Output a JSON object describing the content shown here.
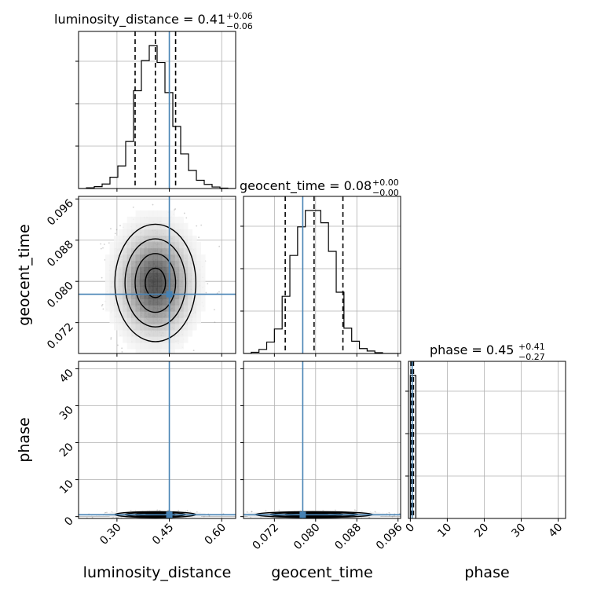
{
  "chart_data": {
    "type": "corner",
    "parameters": [
      "luminosity_distance",
      "geocent_time",
      "phase"
    ],
    "truth": {
      "luminosity_distance": 0.45,
      "geocent_time": 0.0775,
      "phase": 0.5
    },
    "truth_color": "#4682b4",
    "axes": {
      "luminosity_distance": {
        "range": [
          0.19,
          0.64
        ],
        "ticks": [
          0.3,
          0.45,
          0.6
        ],
        "tick_labels": [
          "0.30",
          "0.45",
          "0.60"
        ],
        "xlabel": "luminosity_distance"
      },
      "geocent_time": {
        "range": [
          0.066,
          0.0965
        ],
        "ticks": [
          0.072,
          0.08,
          0.088,
          0.096
        ],
        "tick_labels": [
          "0.072",
          "0.080",
          "0.088",
          "0.096"
        ],
        "xlabel": "geocent_time",
        "ylabel": "geocent_time"
      },
      "phase": {
        "range": [
          -0.5,
          42
        ],
        "ticks": [
          0,
          10,
          20,
          30,
          40
        ],
        "tick_labels": [
          "0",
          "10",
          "20",
          "30",
          "40"
        ],
        "xlabel": "phase",
        "ylabel": "phase"
      }
    },
    "marginals": [
      {
        "param": "luminosity_distance",
        "title": {
          "text": "luminosity_distance = 0.41",
          "sup": "+0.06",
          "sub": "−0.06"
        },
        "quantiles": [
          0.352,
          0.41,
          0.468
        ],
        "bin_edges": [
          0.19,
          0.2125,
          0.235,
          0.2575,
          0.28,
          0.3025,
          0.325,
          0.3475,
          0.37,
          0.3925,
          0.415,
          0.4375,
          0.46,
          0.4825,
          0.505,
          0.5275,
          0.55,
          0.5725,
          0.595,
          0.6175,
          0.64
        ],
        "counts": [
          0,
          2,
          5,
          12,
          30,
          60,
          125,
          260,
          340,
          380,
          335,
          255,
          165,
          92,
          48,
          22,
          11,
          4,
          1,
          0
        ]
      },
      {
        "param": "geocent_time",
        "title": {
          "text": "geocent_time = 0.08",
          "sup": "+0.00",
          "sub": "−0.00"
        },
        "quantiles": [
          0.0741,
          0.0797,
          0.0853
        ],
        "bin_edges": [
          0.066,
          0.0675,
          0.069,
          0.0705,
          0.072,
          0.0735,
          0.075,
          0.0765,
          0.078,
          0.0795,
          0.081,
          0.0825,
          0.084,
          0.0855,
          0.087,
          0.0885,
          0.09,
          0.0915,
          0.093,
          0.0945,
          0.096
        ],
        "counts": [
          0,
          3,
          10,
          28,
          60,
          140,
          240,
          310,
          350,
          350,
          320,
          250,
          150,
          62,
          30,
          12,
          6,
          2,
          0,
          0
        ]
      },
      {
        "param": "phase",
        "title": {
          "text": "phase = 0.45",
          "sup": "+0.41",
          "sub": "−0.27"
        },
        "quantiles": [
          0.18,
          0.45,
          0.86
        ],
        "bin_edges": [
          0,
          1.5
        ],
        "counts": [
          1
        ]
      }
    ],
    "pairs": [
      {
        "x": "luminosity_distance",
        "y": "geocent_time",
        "center": [
          0.41,
          0.0797
        ],
        "sigma": [
          0.058,
          0.0057
        ],
        "rho": -0.05
      },
      {
        "x": "luminosity_distance",
        "y": "phase",
        "center": [
          0.41,
          0.55
        ],
        "sigma": [
          0.058,
          0.4
        ],
        "rho": 0
      },
      {
        "x": "geocent_time",
        "y": "phase",
        "center": [
          0.0797,
          0.55
        ],
        "sigma": [
          0.0057,
          0.4
        ],
        "rho": 0
      }
    ],
    "contour_levels_sigma": [
      0.5,
      1.0,
      1.5,
      2.0
    ],
    "grid": true
  }
}
